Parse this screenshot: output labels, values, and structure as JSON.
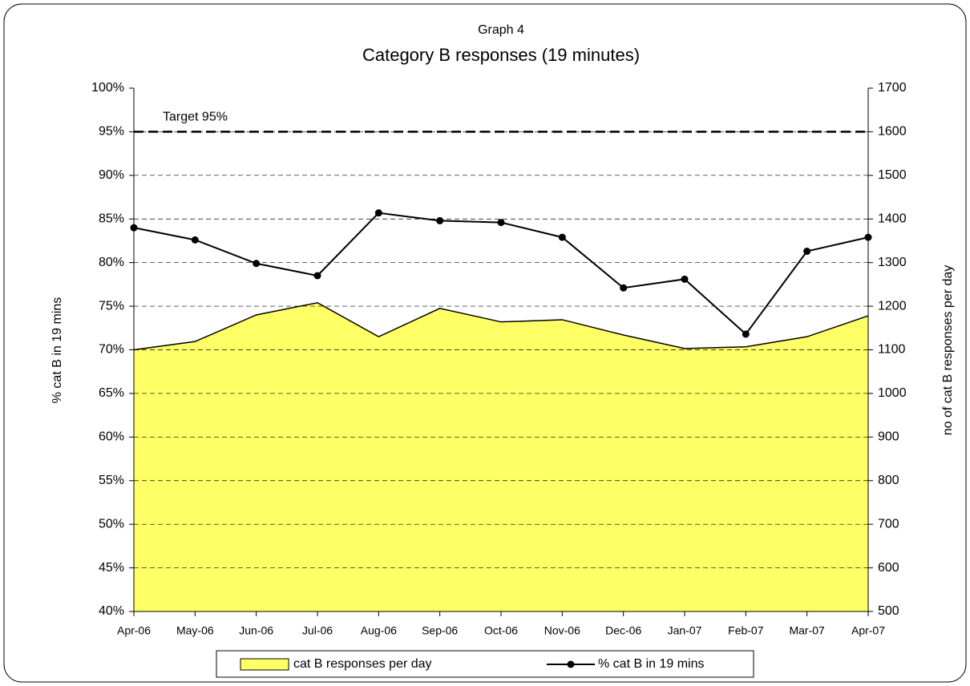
{
  "chart_data": {
    "type": "combo",
    "subtitle": "Graph 4",
    "title": "Category B responses (19 minutes)",
    "y_label": "% cat B in 19 mins",
    "y2_label": "no of cat B responses per day",
    "categories": [
      "Apr-06",
      "May-06",
      "Jun-06",
      "Jul-06",
      "Aug-06",
      "Sep-06",
      "Oct-06",
      "Nov-06",
      "Dec-06",
      "Jan-07",
      "Feb-07",
      "Mar-07",
      "Apr-07"
    ],
    "series": [
      {
        "name": "cat B responses per day",
        "type": "area",
        "axis": "y2",
        "color": "#ffff66",
        "values": [
          1100,
          1119,
          1180,
          1208,
          1130,
          1195,
          1164,
          1169,
          1134,
          1103,
          1107,
          1130,
          1178
        ]
      },
      {
        "name": "% cat B in 19 mins",
        "type": "line",
        "color": "#000000",
        "values": [
          84.0,
          82.6,
          79.9,
          78.5,
          85.7,
          84.8,
          84.6,
          82.9,
          77.1,
          78.1,
          71.8,
          81.3,
          82.9
        ]
      }
    ],
    "target": {
      "value": 95,
      "label": "Target 95%"
    },
    "ylim": [
      40,
      100
    ],
    "yticks": [
      {
        "value": 40,
        "label": "40%"
      },
      {
        "value": 45,
        "label": "45%"
      },
      {
        "value": 50,
        "label": "50%"
      },
      {
        "value": 55,
        "label": "55%"
      },
      {
        "value": 60,
        "label": "60%"
      },
      {
        "value": 65,
        "label": "65%"
      },
      {
        "value": 70,
        "label": "70%"
      },
      {
        "value": 75,
        "label": "75%"
      },
      {
        "value": 80,
        "label": "80%"
      },
      {
        "value": 85,
        "label": "85%"
      },
      {
        "value": 90,
        "label": "90%"
      },
      {
        "value": 95,
        "label": "95%"
      },
      {
        "value": 100,
        "label": "100%"
      }
    ],
    "y2lim": [
      500,
      1700
    ],
    "y2ticks": [
      500,
      600,
      700,
      800,
      900,
      1000,
      1100,
      1200,
      1300,
      1400,
      1500,
      1600,
      1700
    ],
    "grid": true,
    "legend": "bottom"
  }
}
